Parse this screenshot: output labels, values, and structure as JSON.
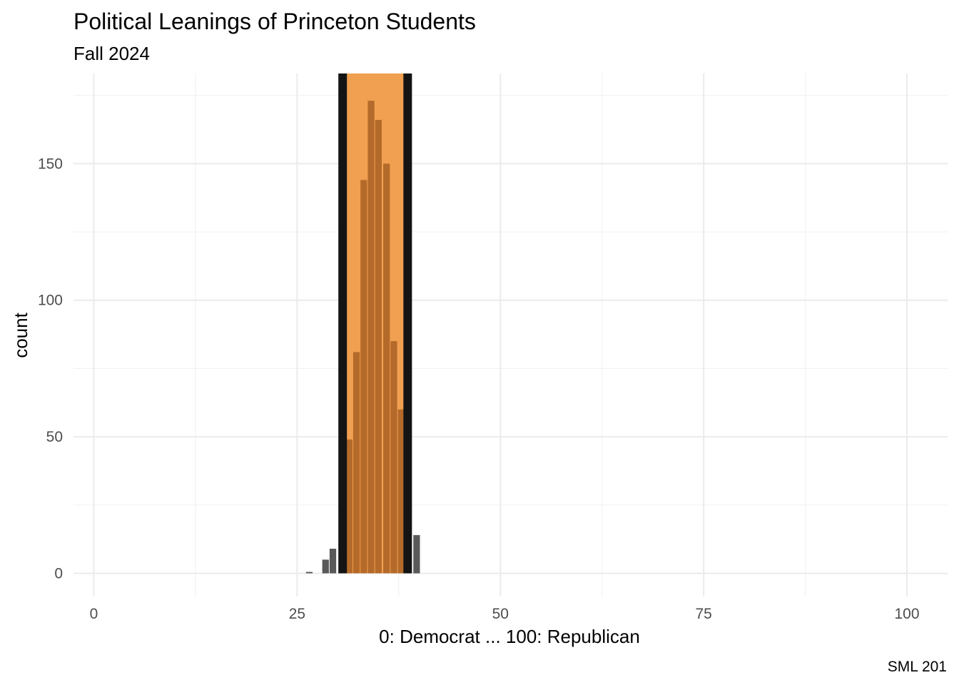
{
  "chart_data": {
    "type": "bar",
    "title": "Political Leanings of Princeton Students",
    "subtitle": "Fall 2024",
    "xlabel": "0: Democrat ... 100: Republican",
    "ylabel": "count",
    "caption": "SML 201",
    "xlim": [
      -2.5,
      105
    ],
    "ylim": [
      -8.5,
      183
    ],
    "x_ticks": [
      0,
      25,
      50,
      75,
      100
    ],
    "y_ticks": [
      0,
      50,
      100,
      150
    ],
    "grid": true,
    "legend": "none",
    "bin_width": 0.9,
    "bins": [
      {
        "x": 26.5,
        "count": 0.5
      },
      {
        "x": 28.5,
        "count": 5
      },
      {
        "x": 29.4,
        "count": 9
      },
      {
        "x": 31.4,
        "count": 49
      },
      {
        "x": 32.3,
        "count": 81
      },
      {
        "x": 33.2,
        "count": 144
      },
      {
        "x": 34.1,
        "count": 173
      },
      {
        "x": 35.0,
        "count": 166
      },
      {
        "x": 36.0,
        "count": 150
      },
      {
        "x": 36.9,
        "count": 85
      },
      {
        "x": 37.8,
        "count": 60
      },
      {
        "x": 39.7,
        "count": 14
      }
    ],
    "highlight_range": [
      31.0,
      38.2
    ],
    "highlight_color": "#F0A050",
    "highlight_bar_color": "#B46A2A",
    "default_bar_color": "#595959",
    "boundary_line_color": "#141414",
    "boundary_lines": [
      30.6,
      38.6
    ]
  }
}
